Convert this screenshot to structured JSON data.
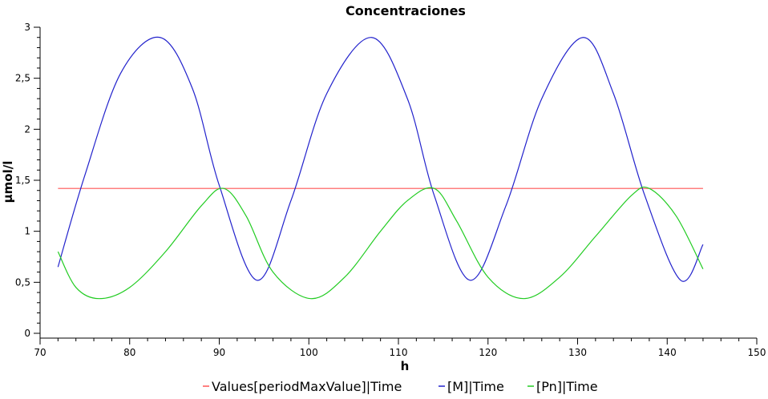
{
  "chart_data": {
    "type": "line",
    "title": "Concentraciones",
    "xlabel": "h",
    "ylabel": "µmol/l",
    "xlim": [
      70,
      150
    ],
    "ylim": [
      0,
      3
    ],
    "x_ticks": [
      70,
      80,
      90,
      100,
      110,
      120,
      130,
      140,
      150
    ],
    "x_tick_labels": [
      "70",
      "80",
      "90",
      "100",
      "110",
      "120",
      "130",
      "140",
      "150"
    ],
    "y_ticks": [
      0,
      0.5,
      1,
      1.5,
      2,
      2.5,
      3
    ],
    "y_tick_labels": [
      "0",
      "0,5",
      "1",
      "1,5",
      "2",
      "2,5",
      "3"
    ],
    "grid": false,
    "legend_position": "bottom",
    "series": [
      {
        "name": "Values[periodMaxValue]|Time",
        "color": "#ff5555",
        "x": [
          72,
          144
        ],
        "y": [
          1.42,
          1.42
        ]
      },
      {
        "name": "[M]|Time",
        "color": "#2222cc",
        "x": [
          72,
          75,
          79,
          83.4,
          87,
          90,
          94.2,
          98,
          102,
          107,
          111,
          114,
          118,
          122,
          126,
          130.6,
          134,
          137.5,
          141.5,
          144
        ],
        "y": [
          0.65,
          1.55,
          2.55,
          2.9,
          2.4,
          1.45,
          0.52,
          1.3,
          2.35,
          2.9,
          2.3,
          1.35,
          0.52,
          1.25,
          2.3,
          2.9,
          2.35,
          1.35,
          0.52,
          0.87
        ]
      },
      {
        "name": "[Pn]|Time",
        "color": "#22cc22",
        "x": [
          72,
          74,
          76.6,
          80,
          84,
          88,
          90.5,
          93,
          96,
          100.2,
          104,
          108,
          111,
          114,
          116.5,
          120,
          124,
          128,
          132,
          136,
          138,
          141,
          144
        ],
        "y": [
          0.8,
          0.45,
          0.34,
          0.45,
          0.8,
          1.25,
          1.42,
          1.15,
          0.6,
          0.34,
          0.55,
          1.0,
          1.3,
          1.42,
          1.1,
          0.55,
          0.34,
          0.55,
          0.95,
          1.35,
          1.42,
          1.15,
          0.63
        ]
      }
    ]
  }
}
